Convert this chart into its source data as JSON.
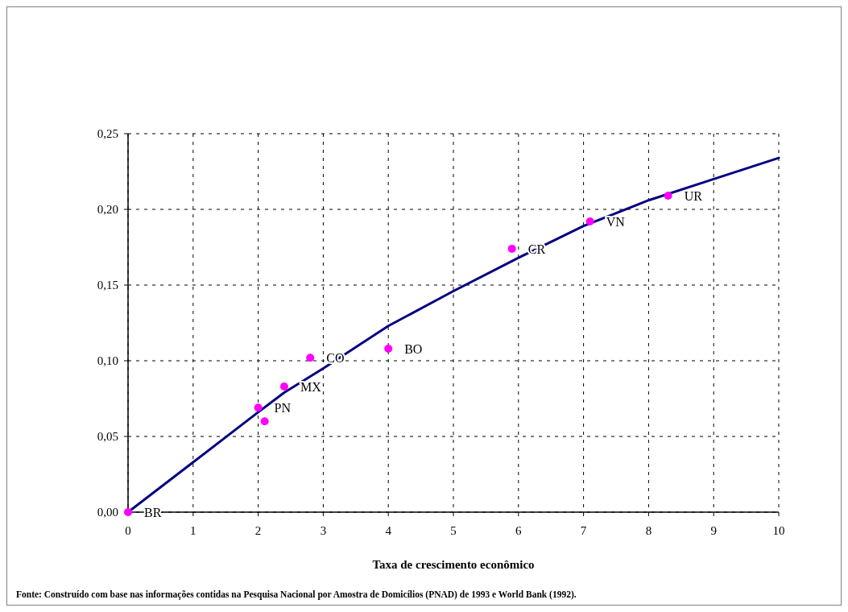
{
  "chart_data": {
    "type": "scatter",
    "xlabel": "Taxa de crescimento econômico",
    "xlim": [
      0,
      10
    ],
    "xticks": [
      0,
      1,
      2,
      3,
      4,
      5,
      6,
      7,
      8,
      9,
      10
    ],
    "ylim": [
      0,
      0.25
    ],
    "yticks": [
      {
        "value": 0,
        "label": "0,00"
      },
      {
        "value": 0.05,
        "label": "0,05"
      },
      {
        "value": 0.1,
        "label": "0,10"
      },
      {
        "value": 0.15,
        "label": "0,15"
      },
      {
        "value": 0.2,
        "label": "0,20"
      },
      {
        "value": 0.25,
        "label": "0,25"
      }
    ],
    "grid": true,
    "marker": "circle",
    "series": [
      {
        "type": "line",
        "marker": "none",
        "color": "#000080",
        "x": [
          0,
          1,
          2,
          2.4,
          3,
          4,
          5,
          6,
          7,
          8,
          9,
          10
        ],
        "values": [
          0,
          0.033,
          0.066,
          0.079,
          0.095,
          0.123,
          0.146,
          0.168,
          0.189,
          0.206,
          0.22,
          0.234
        ]
      },
      {
        "color": "#ff00ff",
        "x": [
          0,
          2.0,
          2.1,
          2.4,
          2.8,
          4.0,
          5.9,
          7.1,
          8.3
        ],
        "values": [
          0,
          0.069,
          0.06,
          0.083,
          0.102,
          0.108,
          0.174,
          0.192,
          0.209
        ]
      }
    ],
    "annotations": [
      {
        "text": "BR",
        "x": 0,
        "y": 0
      },
      {
        "text": "PN",
        "x": 2.0,
        "y": 0.069
      },
      {
        "text": "MX",
        "x": 2.4,
        "y": 0.083
      },
      {
        "text": "CO",
        "x": 2.8,
        "y": 0.102
      },
      {
        "text": "BO",
        "x": 4.0,
        "y": 0.108
      },
      {
        "text": "CR",
        "x": 5.9,
        "y": 0.174
      },
      {
        "text": "VN",
        "x": 7.1,
        "y": 0.192
      },
      {
        "text": "UR",
        "x": 8.3,
        "y": 0.209
      },
      "Fonte: Construído com base nas informações contidas na Pesquisa Nacional por Amostra de Domicílios (PNAD) de 1993 e World Bank (1992)."
    ]
  }
}
